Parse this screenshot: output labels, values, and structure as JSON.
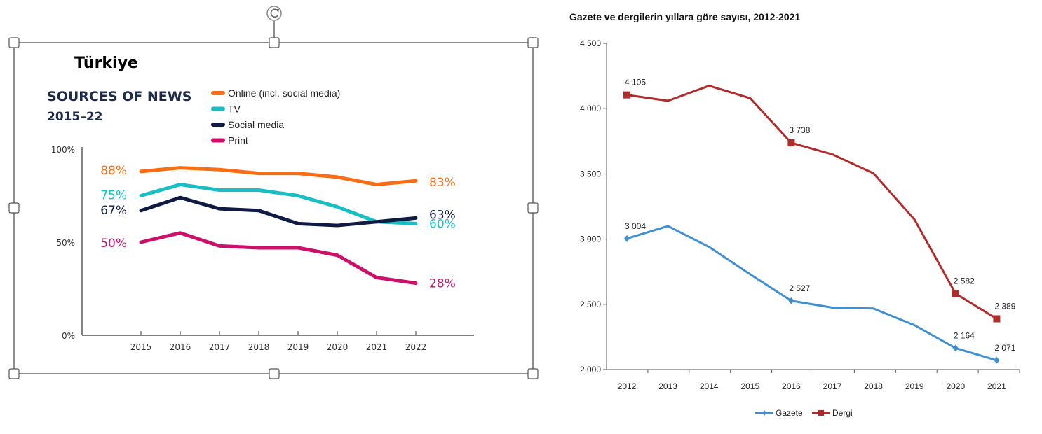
{
  "chart_data": [
    {
      "type": "line",
      "country": "Türkiye",
      "title": "SOURCES OF NEWS",
      "subtitle": "2015–22",
      "x": [
        2015,
        2016,
        2017,
        2018,
        2019,
        2020,
        2021,
        2022
      ],
      "ylim": [
        0,
        100
      ],
      "yticks": [
        "0%",
        "50%",
        "100%"
      ],
      "legend_position": "top",
      "series": [
        {
          "name": "Online (incl. social media)",
          "color": "#f96d15",
          "values": [
            88,
            90,
            89,
            87,
            87,
            85,
            81,
            83
          ],
          "start_label": "88%",
          "end_label": "83%"
        },
        {
          "name": "TV",
          "color": "#17bfc4",
          "values": [
            75,
            81,
            78,
            78,
            75,
            69,
            61,
            60
          ],
          "start_label": "75%",
          "end_label": "60%"
        },
        {
          "name": "Social media",
          "color": "#0f1b45",
          "values": [
            67,
            74,
            68,
            67,
            60,
            59,
            61,
            63
          ],
          "start_label": "67%",
          "end_label": "63%"
        },
        {
          "name": "Print",
          "color": "#cc0f69",
          "values": [
            50,
            55,
            48,
            47,
            47,
            43,
            31,
            28
          ],
          "start_label": "50%",
          "end_label": "28%"
        }
      ]
    },
    {
      "type": "line",
      "title": "Gazete ve dergilerin yıllara göre sayısı, 2012-2021",
      "x": [
        2012,
        2013,
        2014,
        2015,
        2016,
        2017,
        2018,
        2019,
        2020,
        2021
      ],
      "ylim": [
        2000,
        4500
      ],
      "yticks": [
        "2 000",
        "2 500",
        "3 000",
        "3 500",
        "4 000",
        "4 500"
      ],
      "legend_position": "bottom",
      "series": [
        {
          "name": "Gazete",
          "color": "#3f8fd2",
          "values": [
            3004,
            3100,
            2940,
            2730,
            2527,
            2475,
            2468,
            2340,
            2164,
            2071
          ],
          "labels": [
            "3 004",
            "",
            "",
            "",
            "2 527",
            "",
            "",
            "",
            "2 164",
            "2 071"
          ]
        },
        {
          "name": "Dergi",
          "color": "#b22a2a",
          "values": [
            4105,
            4060,
            4175,
            4080,
            3738,
            3650,
            3505,
            3150,
            2582,
            2389
          ],
          "labels": [
            "4 105",
            "",
            "",
            "",
            "3 738",
            "",
            "",
            "",
            "2 582",
            "2 389"
          ]
        }
      ]
    }
  ]
}
